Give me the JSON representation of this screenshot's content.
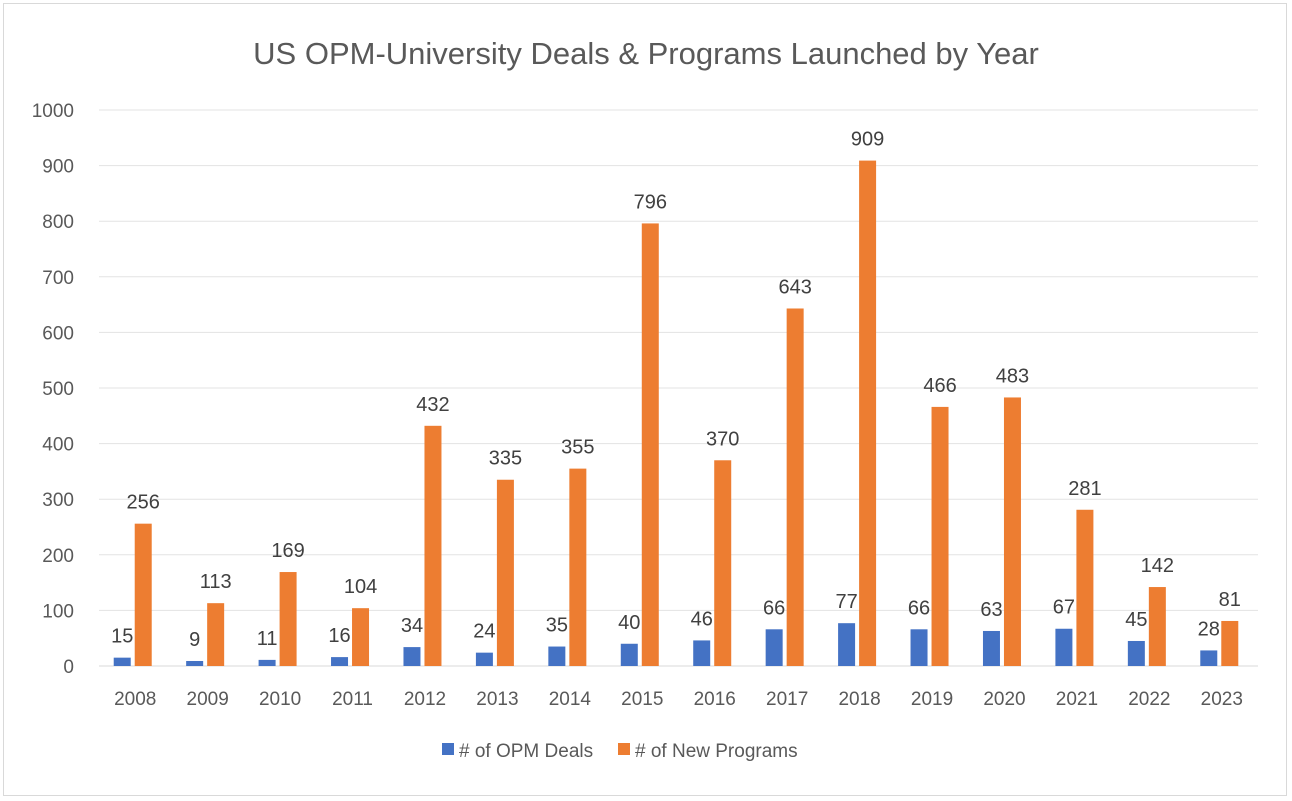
{
  "chart_data": {
    "type": "bar",
    "title": "US OPM-University Deals & Programs Launched by Year",
    "xlabel": "",
    "ylabel": "",
    "ylim": [
      0,
      1000
    ],
    "yticks": [
      0,
      100,
      200,
      300,
      400,
      500,
      600,
      700,
      800,
      900,
      1000
    ],
    "grid": true,
    "legend": "bottom",
    "categories": [
      "2008",
      "2009",
      "2010",
      "2011",
      "2012",
      "2013",
      "2014",
      "2015",
      "2016",
      "2017",
      "2018",
      "2019",
      "2020",
      "2021",
      "2022",
      "2023"
    ],
    "series": [
      {
        "name": "# of OPM Deals",
        "color": "#4472C4",
        "values": [
          15,
          9,
          11,
          16,
          34,
          24,
          35,
          40,
          46,
          66,
          77,
          66,
          63,
          67,
          45,
          28
        ]
      },
      {
        "name": "# of New Programs",
        "color": "#ED7D31",
        "values": [
          256,
          113,
          169,
          104,
          432,
          335,
          355,
          796,
          370,
          643,
          909,
          466,
          483,
          281,
          142,
          81
        ]
      }
    ]
  }
}
